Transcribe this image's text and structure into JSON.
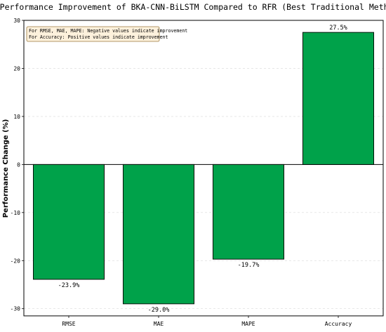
{
  "chart_data": {
    "type": "bar",
    "title": "Performance Improvement of BKA-CNN-BiLSTM Compared to RFR (Best Traditional Method)",
    "xlabel": "",
    "ylabel": "Performance Change (%)",
    "categories": [
      "RMSE",
      "MAE",
      "MAPE",
      "Accuracy"
    ],
    "values": [
      -23.9,
      -29.0,
      -19.7,
      27.5
    ],
    "value_labels": [
      "-23.9%",
      "-29.0%",
      "-19.7%",
      "27.5%"
    ],
    "ylim": [
      -31.5,
      30
    ],
    "yticks": [
      -30,
      -20,
      -10,
      0,
      10,
      20,
      30
    ],
    "grid": "horizontal, dashed",
    "bar_color": "#00a24a",
    "bar_edge_color": "#000000",
    "annotation": {
      "placement": "top-left",
      "lines": [
        "For RMSE, MAE, MAPE: Negative values indicate improvement",
        "For Accuracy: Positive values indicate improvement"
      ],
      "background": "#fdf1dc",
      "border": "#9b7a3e"
    }
  }
}
